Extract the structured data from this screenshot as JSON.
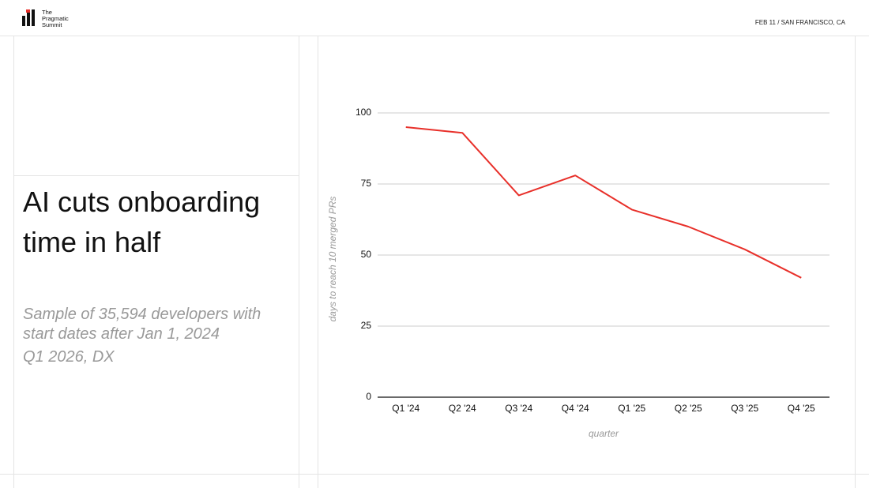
{
  "header": {
    "logo_lines": [
      "The",
      "Pragmatic",
      "Summit"
    ],
    "event": "FEB 11 / SAN FRANCISCO, CA"
  },
  "slide": {
    "title": "AI cuts onboarding time in half",
    "subtitle": "Sample of 35,594 developers with start dates after Jan 1, 2024",
    "source": "Q1 2026, DX"
  },
  "chart_data": {
    "type": "line",
    "x_label": "quarter",
    "y_label": "days to reach 10 merged PRs",
    "categories": [
      "Q1 '24",
      "Q2 '24",
      "Q3 '24",
      "Q4 '24",
      "Q1 '25",
      "Q2 '25",
      "Q3 '25",
      "Q4 '25"
    ],
    "values": [
      95,
      93,
      71,
      78,
      66,
      60,
      52,
      42
    ],
    "color": "#e8302a",
    "ylim": [
      0,
      100
    ],
    "yticks": [
      0,
      25,
      50,
      75,
      100
    ],
    "grid": true
  }
}
